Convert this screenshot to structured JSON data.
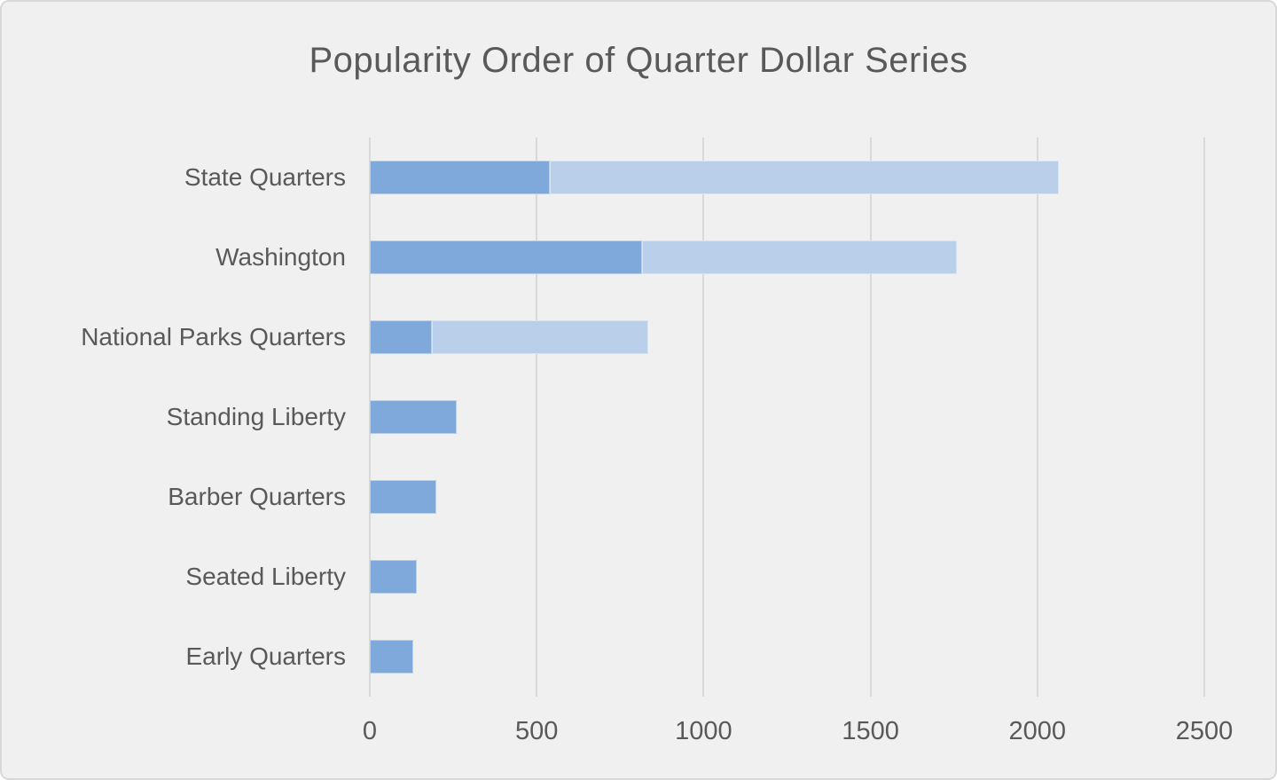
{
  "window": {
    "background_color": "#f0f0f0",
    "border_color": "#d8d8d8"
  },
  "chart_data": {
    "type": "bar",
    "orientation": "horizontal",
    "stacked": true,
    "title": "Popularity Order of Quarter Dollar Series",
    "categories": [
      "State Quarters",
      "Washington",
      "National Parks Quarters",
      "Standing Liberty",
      "Barber Quarters",
      "Seated Liberty",
      "Early Quarters"
    ],
    "series": [
      {
        "name": "dark-segment",
        "color": "#7FA9DA",
        "values": [
          540,
          815,
          185,
          260,
          200,
          140,
          130
        ]
      },
      {
        "name": "light-segment",
        "color": "#BACFE9",
        "values": [
          1525,
          945,
          650,
          0,
          0,
          0,
          0
        ]
      }
    ],
    "totals": [
      2065,
      1760,
      835,
      260,
      200,
      140,
      130
    ],
    "xlabel": "",
    "ylabel": "",
    "x_ticks": [
      "0",
      "500",
      "1000",
      "1500",
      "2000",
      "2500"
    ],
    "x_tick_values": [
      0,
      500,
      1000,
      1500,
      2000,
      2500
    ],
    "xlim": [
      0,
      2500
    ],
    "grid": "vertical",
    "gridline_color": "#d9d9d9",
    "text_color": "#595959",
    "segment_border_color": "rgba(255,255,255,0.45)",
    "legend": "none"
  }
}
